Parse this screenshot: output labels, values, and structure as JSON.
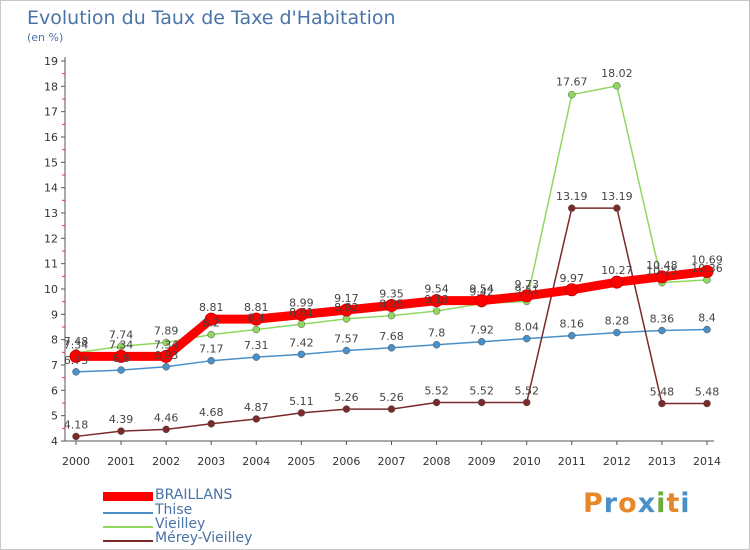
{
  "title": "Evolution du Taux de Taxe d'Habitation",
  "unit": "(en %)",
  "logo": {
    "text": "Proxiti",
    "colors": [
      "#e8862a",
      "#4a90c8",
      "#e8862a",
      "#4a90c8",
      "#6aab3a",
      "#e8862a",
      "#4a90c8"
    ]
  },
  "chart_data": {
    "type": "line",
    "x": [
      "2000",
      "2001",
      "2002",
      "2003",
      "2004",
      "2005",
      "2006",
      "2007",
      "2008",
      "2009",
      "2010",
      "2011",
      "2012",
      "2013",
      "2014"
    ],
    "ylim": [
      4,
      19
    ],
    "yticks": [
      "4",
      "5",
      "6",
      "7",
      "8",
      "9",
      "10",
      "11",
      "12",
      "13",
      "14",
      "15",
      "16",
      "17",
      "18",
      "19"
    ],
    "grid": false,
    "legend_position": "bottom-left",
    "series": [
      {
        "name": "BRAILLANS",
        "color": "#ff0000",
        "values": [
          7.34,
          7.34,
          7.34,
          8.81,
          8.81,
          8.99,
          9.17,
          9.35,
          9.54,
          9.54,
          9.73,
          9.97,
          10.27,
          10.48,
          10.69
        ],
        "labels": [
          "7.34",
          "7.34",
          "7.34",
          "8.81",
          "8.81",
          "8.99",
          "9.17",
          "9.35",
          "9.54",
          "9.54",
          "9.73",
          "9.97",
          "10.27",
          "10.48",
          "10.69"
        ]
      },
      {
        "name": "Thise",
        "color": "#4a90c8",
        "values": [
          6.73,
          6.8,
          6.93,
          7.17,
          7.31,
          7.42,
          7.57,
          7.68,
          7.8,
          7.92,
          8.04,
          8.16,
          8.28,
          8.36,
          8.4
        ],
        "labels": [
          "6.73",
          "6.8",
          "6.93",
          "7.17",
          "7.31",
          "7.42",
          "7.57",
          "7.68",
          "7.8",
          "7.92",
          "8.04",
          "8.16",
          "8.28",
          "8.36",
          "8.4"
        ]
      },
      {
        "name": "Vieilley",
        "color": "#90d860",
        "values": [
          7.48,
          7.74,
          7.89,
          8.2,
          8.4,
          8.61,
          8.82,
          8.95,
          9.13,
          9.42,
          9.51,
          17.67,
          18.02,
          10.25,
          10.36
        ],
        "labels": [
          "7.48",
          "7.74",
          "7.89",
          "8.2",
          "8.4",
          "8.61",
          "8.82",
          "8.95",
          "9.13",
          "9.42",
          "9.51",
          "17.67",
          "18.02",
          "10.25",
          "10.36"
        ]
      },
      {
        "name": "Mérey-Vieilley",
        "color": "#7a2a2a",
        "values": [
          4.18,
          4.39,
          4.46,
          4.68,
          4.87,
          5.11,
          5.26,
          5.26,
          5.52,
          5.52,
          5.52,
          13.19,
          13.19,
          5.48,
          5.48
        ],
        "labels": [
          "4.18",
          "4.39",
          "4.46",
          "4.68",
          "4.87",
          "5.11",
          "5.26",
          "5.26",
          "5.52",
          "5.52",
          "5.52",
          "13.19",
          "13.19",
          "5.48",
          "5.48"
        ]
      }
    ]
  }
}
